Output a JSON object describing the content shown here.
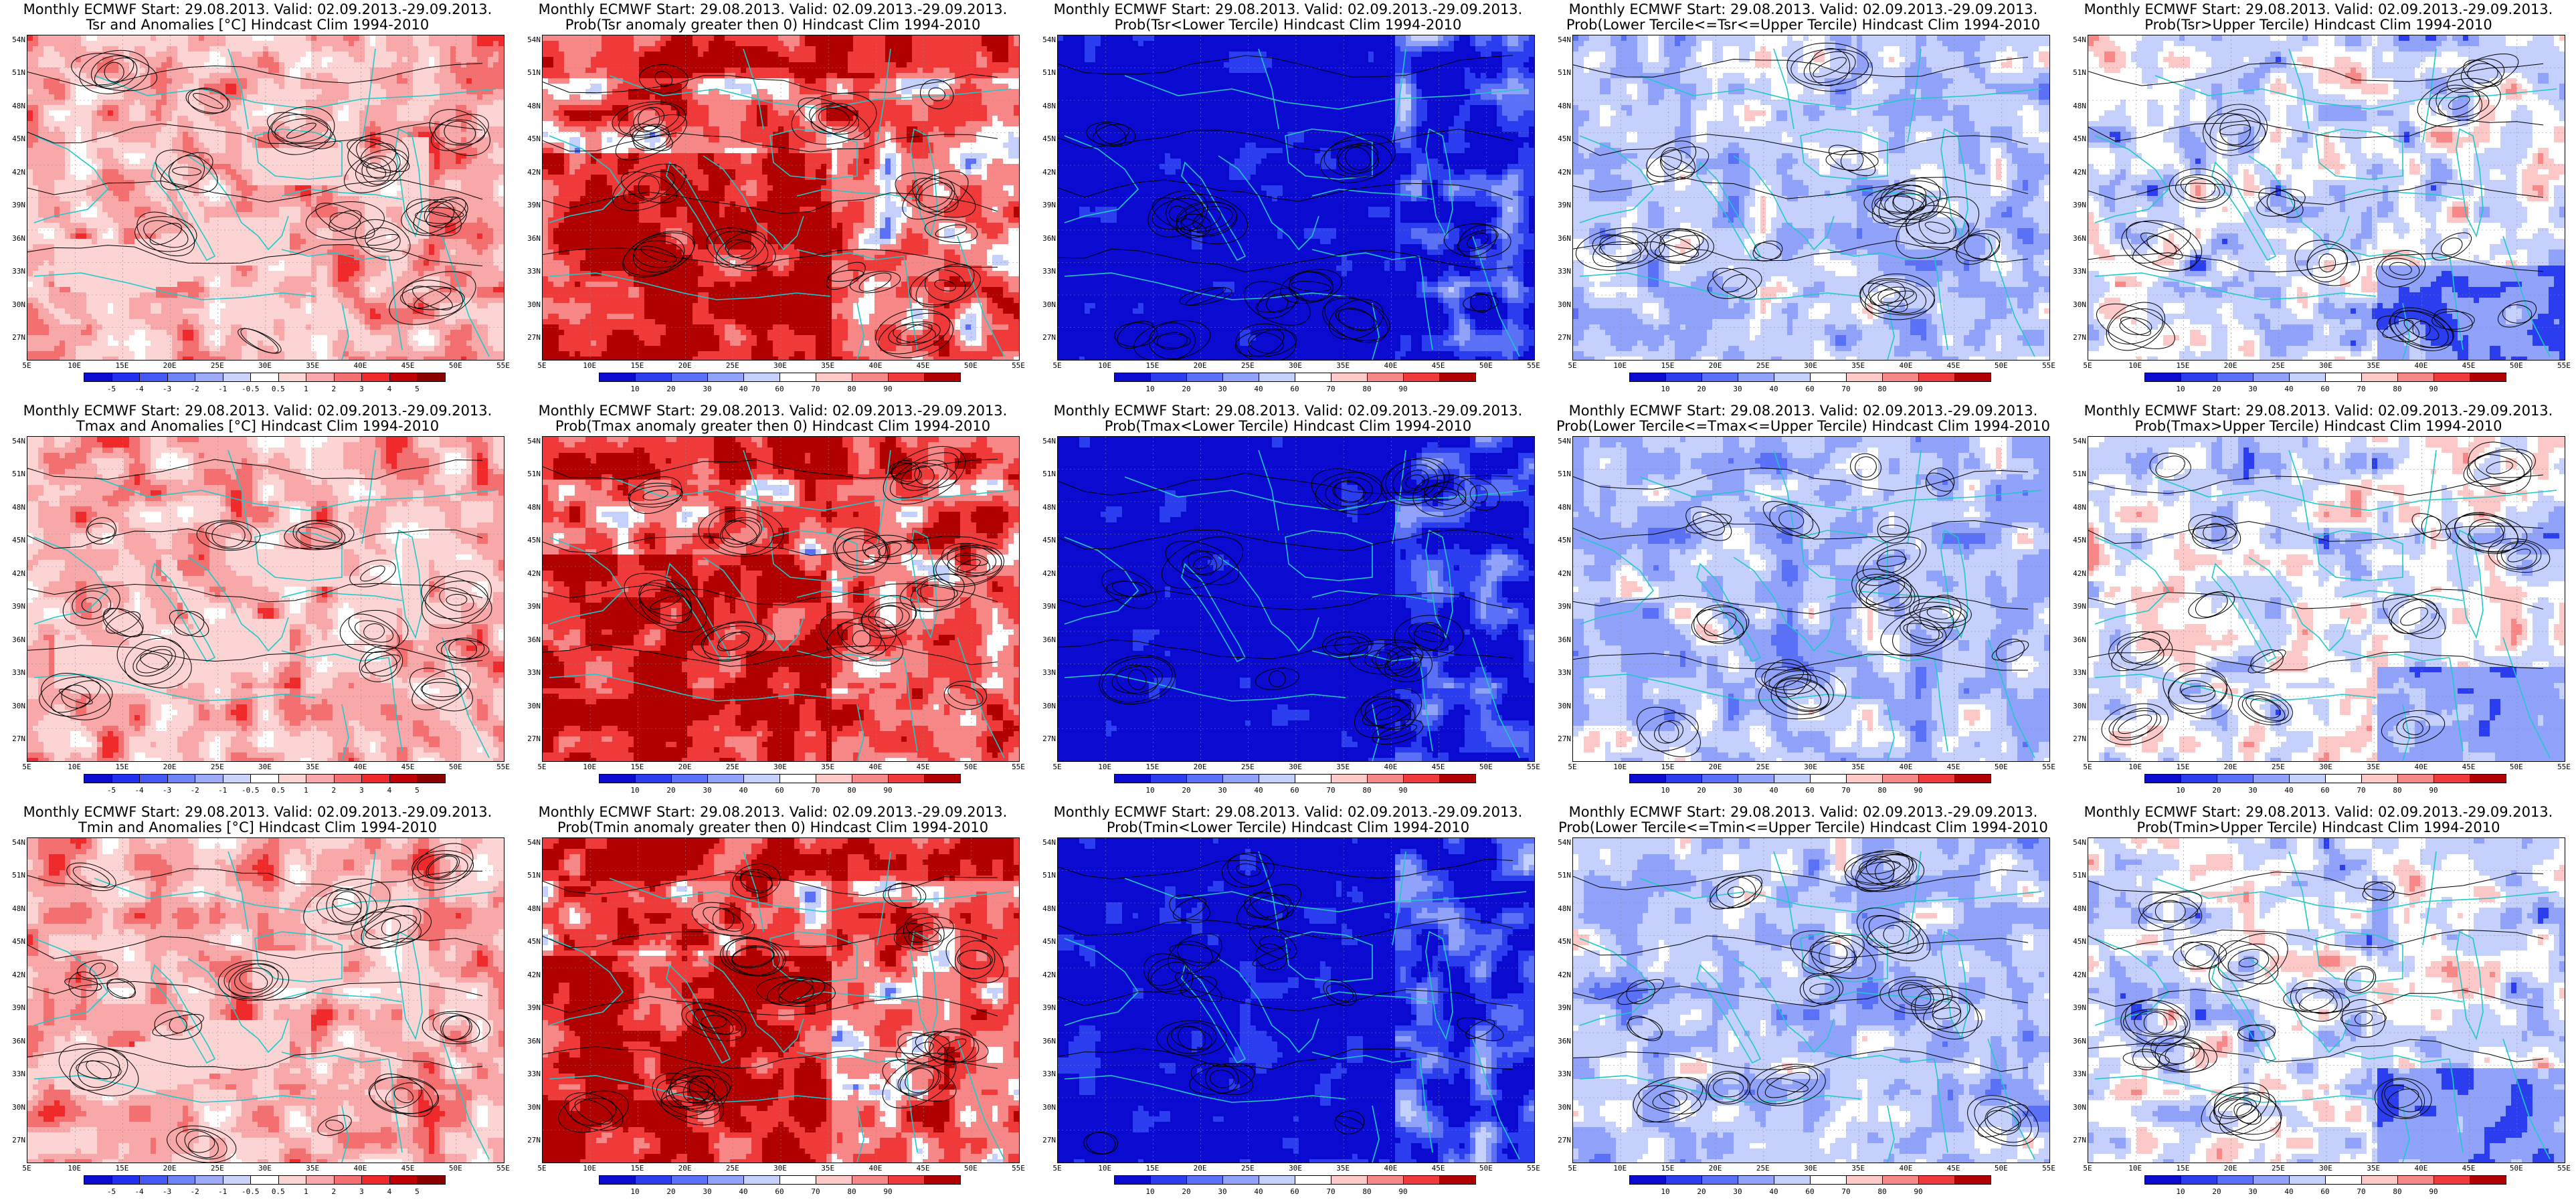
{
  "panels": [
    {
      "t1": "Monthly ECMWF Start: 29.08.2013. Valid: 02.09.2013.-29.09.2013.",
      "t2": "Tsr and Anomalies [°C] Hindcast Clim 1994-2010",
      "kind": "anom",
      "lvl": 1
    },
    {
      "t1": "Monthly ECMWF Start: 29.08.2013. Valid: 02.09.2013.-29.09.2013.",
      "t2": "Prob(Tsr anomaly greater then 0) Hindcast Clim 1994-2010",
      "kind": "gt0",
      "lvl": 1
    },
    {
      "t1": "Monthly ECMWF Start: 29.08.2013. Valid: 02.09.2013.-29.09.2013.",
      "t2": "Prob(Tsr<Lower Tercile) Hindcast Clim 1994-2010",
      "kind": "lower",
      "lvl": 1
    },
    {
      "t1": "Monthly ECMWF Start: 29.08.2013. Valid: 02.09.2013.-29.09.2013.",
      "t2": "Prob(Lower Tercile<=Tsr<=Upper Tercile) Hindcast Clim 1994-2010",
      "kind": "middle",
      "lvl": 1
    },
    {
      "t1": "Monthly ECMWF Start: 29.08.2013. Valid: 02.09.2013.-29.09.2013.",
      "t2": "Prob(Tsr>Upper Tercile) Hindcast Clim 1994-2010",
      "kind": "upper",
      "lvl": 1
    },
    {
      "t1": "Monthly ECMWF Start: 29.08.2013. Valid: 02.09.2013.-29.09.2013.",
      "t2": "Tmax and Anomalies [°C] Hindcast Clim 1994-2010",
      "kind": "anom",
      "lvl": 1
    },
    {
      "t1": "Monthly ECMWF Start: 29.08.2013. Valid: 02.09.2013.-29.09.2013.",
      "t2": "Prob(Tmax anomaly greater then 0) Hindcast Clim 1994-2010",
      "kind": "gt0",
      "lvl": 1
    },
    {
      "t1": "Monthly ECMWF Start: 29.08.2013. Valid: 02.09.2013.-29.09.2013.",
      "t2": "Prob(Tmax<Lower Tercile) Hindcast Clim 1994-2010",
      "kind": "lower",
      "lvl": 1
    },
    {
      "t1": "Monthly ECMWF Start: 29.08.2013. Valid: 02.09.2013.-29.09.2013.",
      "t2": "Prob(Lower Tercile<=Tmax<=Upper Tercile) Hindcast Clim 1994-2010",
      "kind": "middle",
      "lvl": 1
    },
    {
      "t1": "Monthly ECMWF Start: 29.08.2013. Valid: 02.09.2013.-29.09.2013.",
      "t2": "Prob(Tmax>Upper Tercile) Hindcast Clim 1994-2010",
      "kind": "upper",
      "lvl": 1
    },
    {
      "t1": "Monthly ECMWF Start: 29.08.2013. Valid: 02.09.2013.-29.09.2013.",
      "t2": "Tmin and Anomalies [°C] Hindcast Clim 1994-2010",
      "kind": "anom",
      "lvl": 2
    },
    {
      "t1": "Monthly ECMWF Start: 29.08.2013. Valid: 02.09.2013.-29.09.2013.",
      "t2": "Prob(Tmin anomaly greater then 0) Hindcast Clim 1994-2010",
      "kind": "gt0",
      "lvl": 1
    },
    {
      "t1": "Monthly ECMWF Start: 29.08.2013. Valid: 02.09.2013.-29.09.2013.",
      "t2": "Prob(Tmin<Lower Tercile) Hindcast Clim 1994-2010",
      "kind": "lower",
      "lvl": 2
    },
    {
      "t1": "Monthly ECMWF Start: 29.08.2013. Valid: 02.09.2013.-29.09.2013.",
      "t2": "Prob(Lower Tercile<=Tmin<=Upper Tercile) Hindcast Clim 1994-2010",
      "kind": "middle",
      "lvl": 1
    },
    {
      "t1": "Monthly ECMWF Start: 29.08.2013. Valid: 02.09.2013.-29.09.2013.",
      "t2": "Prob(Tmin>Upper Tercile) Hindcast Clim 1994-2010",
      "kind": "upper",
      "lvl": 2
    }
  ],
  "axes": {
    "lat_labels": [
      "54N",
      "51N",
      "48N",
      "45N",
      "42N",
      "39N",
      "36N",
      "33N",
      "30N",
      "27N"
    ],
    "lon_labels": [
      "5E",
      "10E",
      "15E",
      "20E",
      "25E",
      "30E",
      "35E",
      "40E",
      "45E",
      "50E",
      "55E"
    ]
  },
  "colorbars": {
    "anom": {
      "labels": [
        "-5",
        "-4",
        "-3",
        "-2",
        "-1",
        "-0.5",
        "0.5",
        "1",
        "2",
        "3",
        "4",
        "5"
      ],
      "colors": [
        "#0a0ad0",
        "#2030f0",
        "#4458f4",
        "#6c84f8",
        "#9cacfa",
        "#ccd4fc",
        "#ffffff",
        "#fcd4d4",
        "#f8a8a8",
        "#f47070",
        "#f02a2a",
        "#c00000",
        "#8a0000"
      ]
    },
    "prob": {
      "labels": [
        "10",
        "20",
        "30",
        "40",
        "60",
        "70",
        "80",
        "90"
      ],
      "colors": [
        "#0a0ad0",
        "#2a3ef0",
        "#5a70f6",
        "#90a2fa",
        "#c6d0fc",
        "#ffffff",
        "#fcc8c8",
        "#f88888",
        "#f03a3a",
        "#b00000"
      ]
    }
  },
  "colors": {
    "coast": "#20c8c8",
    "contour": "#000000",
    "frame": "#000000"
  }
}
